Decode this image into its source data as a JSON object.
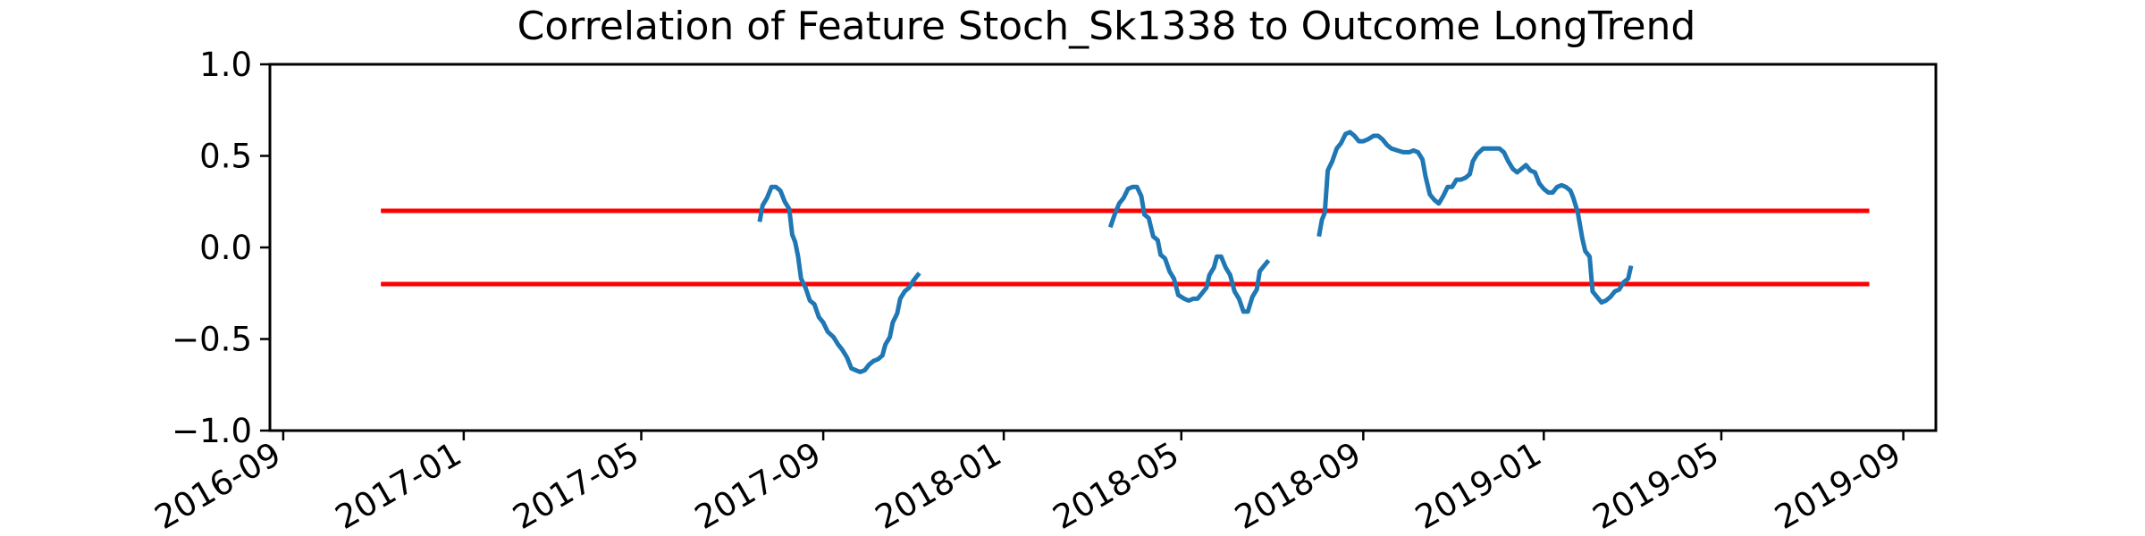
{
  "chart_data": {
    "type": "line",
    "title": "Correlation of Feature Stoch_Sk1338 to Outcome LongTrend",
    "xlabel": "",
    "ylabel": "",
    "ylim": [
      -1.0,
      1.0
    ],
    "xlim": [
      "2016-08-23",
      "2019-09-23"
    ],
    "yticks": [
      "1.0",
      "0.5",
      "0.0",
      "−0.5",
      "−1.0"
    ],
    "ytick_values": [
      1.0,
      0.5,
      0.0,
      -0.5,
      -1.0
    ],
    "xticks": [
      "2016-09",
      "2017-01",
      "2017-05",
      "2017-09",
      "2018-01",
      "2018-05",
      "2018-09",
      "2019-01",
      "2019-05",
      "2019-09"
    ],
    "xtick_values": [
      "2016-09-01",
      "2017-01-01",
      "2017-05-01",
      "2017-09-01",
      "2018-01-01",
      "2018-05-01",
      "2018-09-01",
      "2019-01-01",
      "2019-05-01",
      "2019-09-01"
    ],
    "grid": false,
    "threshold_lines": [
      {
        "y": 0.2,
        "x_start": "2016-11-06",
        "x_end": "2019-08-09",
        "color": "#ff0000"
      },
      {
        "y": -0.2,
        "x_start": "2016-11-06",
        "x_end": "2019-08-09",
        "color": "#ff0000"
      }
    ],
    "series": [
      {
        "color": "#1f77b4",
        "segments": [
          [
            [
              "2017-07-20",
              0.14
            ],
            [
              "2017-07-22",
              0.23
            ],
            [
              "2017-07-25",
              0.27
            ],
            [
              "2017-07-28",
              0.33
            ],
            [
              "2017-07-31",
              0.33
            ],
            [
              "2017-08-03",
              0.31
            ],
            [
              "2017-08-06",
              0.25
            ],
            [
              "2017-08-09",
              0.21
            ],
            [
              "2017-08-11",
              0.07
            ],
            [
              "2017-08-13",
              0.03
            ],
            [
              "2017-08-15",
              -0.05
            ],
            [
              "2017-08-17",
              -0.17
            ],
            [
              "2017-08-20",
              -0.22
            ],
            [
              "2017-08-23",
              -0.29
            ],
            [
              "2017-08-26",
              -0.31
            ],
            [
              "2017-08-29",
              -0.38
            ],
            [
              "2017-09-01",
              -0.41
            ],
            [
              "2017-09-04",
              -0.46
            ],
            [
              "2017-09-08",
              -0.49
            ],
            [
              "2017-09-11",
              -0.53
            ],
            [
              "2017-09-14",
              -0.56
            ],
            [
              "2017-09-17",
              -0.6
            ],
            [
              "2017-09-20",
              -0.66
            ],
            [
              "2017-09-23",
              -0.67
            ],
            [
              "2017-09-26",
              -0.68
            ],
            [
              "2017-09-29",
              -0.67
            ],
            [
              "2017-10-02",
              -0.64
            ],
            [
              "2017-10-05",
              -0.62
            ],
            [
              "2017-10-08",
              -0.61
            ],
            [
              "2017-10-11",
              -0.59
            ],
            [
              "2017-10-13",
              -0.53
            ],
            [
              "2017-10-16",
              -0.49
            ],
            [
              "2017-10-18",
              -0.41
            ],
            [
              "2017-10-21",
              -0.36
            ],
            [
              "2017-10-23",
              -0.28
            ],
            [
              "2017-10-26",
              -0.24
            ],
            [
              "2017-10-29",
              -0.22
            ],
            [
              "2017-11-01",
              -0.18
            ],
            [
              "2017-11-05",
              -0.14
            ]
          ],
          [
            [
              "2018-03-14",
              0.11
            ],
            [
              "2018-03-17",
              0.18
            ],
            [
              "2018-03-20",
              0.24
            ],
            [
              "2018-03-23",
              0.27
            ],
            [
              "2018-03-26",
              0.32
            ],
            [
              "2018-03-29",
              0.33
            ],
            [
              "2018-04-01",
              0.33
            ],
            [
              "2018-04-04",
              0.28
            ],
            [
              "2018-04-06",
              0.18
            ],
            [
              "2018-04-09",
              0.16
            ],
            [
              "2018-04-12",
              0.06
            ],
            [
              "2018-04-15",
              0.04
            ],
            [
              "2018-04-17",
              -0.04
            ],
            [
              "2018-04-20",
              -0.06
            ],
            [
              "2018-04-23",
              -0.13
            ],
            [
              "2018-04-26",
              -0.17
            ],
            [
              "2018-04-29",
              -0.26
            ],
            [
              "2018-05-03",
              -0.28
            ],
            [
              "2018-05-06",
              -0.29
            ],
            [
              "2018-05-09",
              -0.28
            ],
            [
              "2018-05-12",
              -0.28
            ],
            [
              "2018-05-15",
              -0.25
            ],
            [
              "2018-05-18",
              -0.22
            ],
            [
              "2018-05-20",
              -0.15
            ],
            [
              "2018-05-23",
              -0.11
            ],
            [
              "2018-05-25",
              -0.05
            ],
            [
              "2018-05-28",
              -0.05
            ],
            [
              "2018-05-31",
              -0.11
            ],
            [
              "2018-06-03",
              -0.15
            ],
            [
              "2018-06-06",
              -0.24
            ],
            [
              "2018-06-09",
              -0.28
            ],
            [
              "2018-06-12",
              -0.35
            ],
            [
              "2018-06-15",
              -0.35
            ],
            [
              "2018-06-18",
              -0.27
            ],
            [
              "2018-06-21",
              -0.23
            ],
            [
              "2018-06-23",
              -0.13
            ],
            [
              "2018-06-26",
              -0.1
            ],
            [
              "2018-06-29",
              -0.07
            ]
          ],
          [
            [
              "2018-08-02",
              0.06
            ],
            [
              "2018-08-04",
              0.15
            ],
            [
              "2018-08-06",
              0.19
            ],
            [
              "2018-08-08",
              0.42
            ],
            [
              "2018-08-11",
              0.47
            ],
            [
              "2018-08-14",
              0.54
            ],
            [
              "2018-08-17",
              0.57
            ],
            [
              "2018-08-20",
              0.62
            ],
            [
              "2018-08-23",
              0.63
            ],
            [
              "2018-08-26",
              0.61
            ],
            [
              "2018-08-29",
              0.58
            ],
            [
              "2018-09-01",
              0.58
            ],
            [
              "2018-09-04",
              0.59
            ],
            [
              "2018-09-08",
              0.61
            ],
            [
              "2018-09-11",
              0.61
            ],
            [
              "2018-09-14",
              0.59
            ],
            [
              "2018-09-17",
              0.56
            ],
            [
              "2018-09-20",
              0.54
            ],
            [
              "2018-09-24",
              0.53
            ],
            [
              "2018-09-28",
              0.52
            ],
            [
              "2018-10-02",
              0.52
            ],
            [
              "2018-10-05",
              0.53
            ],
            [
              "2018-10-08",
              0.52
            ],
            [
              "2018-10-11",
              0.48
            ],
            [
              "2018-10-13",
              0.39
            ],
            [
              "2018-10-16",
              0.29
            ],
            [
              "2018-10-19",
              0.26
            ],
            [
              "2018-10-22",
              0.24
            ],
            [
              "2018-10-25",
              0.28
            ],
            [
              "2018-10-28",
              0.33
            ],
            [
              "2018-10-31",
              0.33
            ],
            [
              "2018-11-03",
              0.37
            ],
            [
              "2018-11-06",
              0.37
            ],
            [
              "2018-11-09",
              0.38
            ],
            [
              "2018-11-12",
              0.4
            ],
            [
              "2018-11-14",
              0.47
            ],
            [
              "2018-11-17",
              0.51
            ],
            [
              "2018-11-21",
              0.54
            ],
            [
              "2018-11-25",
              0.54
            ],
            [
              "2018-11-29",
              0.54
            ],
            [
              "2018-12-02",
              0.54
            ],
            [
              "2018-12-05",
              0.52
            ],
            [
              "2018-12-08",
              0.47
            ],
            [
              "2018-12-11",
              0.43
            ],
            [
              "2018-12-14",
              0.41
            ],
            [
              "2018-12-17",
              0.43
            ],
            [
              "2018-12-20",
              0.45
            ],
            [
              "2018-12-23",
              0.42
            ],
            [
              "2018-12-26",
              0.41
            ],
            [
              "2018-12-29",
              0.35
            ],
            [
              "2019-01-01",
              0.32
            ],
            [
              "2019-01-04",
              0.3
            ],
            [
              "2019-01-07",
              0.3
            ],
            [
              "2019-01-10",
              0.33
            ],
            [
              "2019-01-13",
              0.34
            ],
            [
              "2019-01-16",
              0.33
            ],
            [
              "2019-01-19",
              0.31
            ],
            [
              "2019-01-21",
              0.27
            ],
            [
              "2019-01-24",
              0.19
            ],
            [
              "2019-01-27",
              0.05
            ],
            [
              "2019-01-29",
              -0.02
            ],
            [
              "2019-02-01",
              -0.05
            ],
            [
              "2019-02-03",
              -0.24
            ],
            [
              "2019-02-06",
              -0.27
            ],
            [
              "2019-02-09",
              -0.3
            ],
            [
              "2019-02-12",
              -0.29
            ],
            [
              "2019-02-15",
              -0.27
            ],
            [
              "2019-02-18",
              -0.24
            ],
            [
              "2019-02-21",
              -0.23
            ],
            [
              "2019-02-24",
              -0.19
            ],
            [
              "2019-02-27",
              -0.17
            ],
            [
              "2019-03-01",
              -0.1
            ]
          ]
        ]
      }
    ]
  }
}
